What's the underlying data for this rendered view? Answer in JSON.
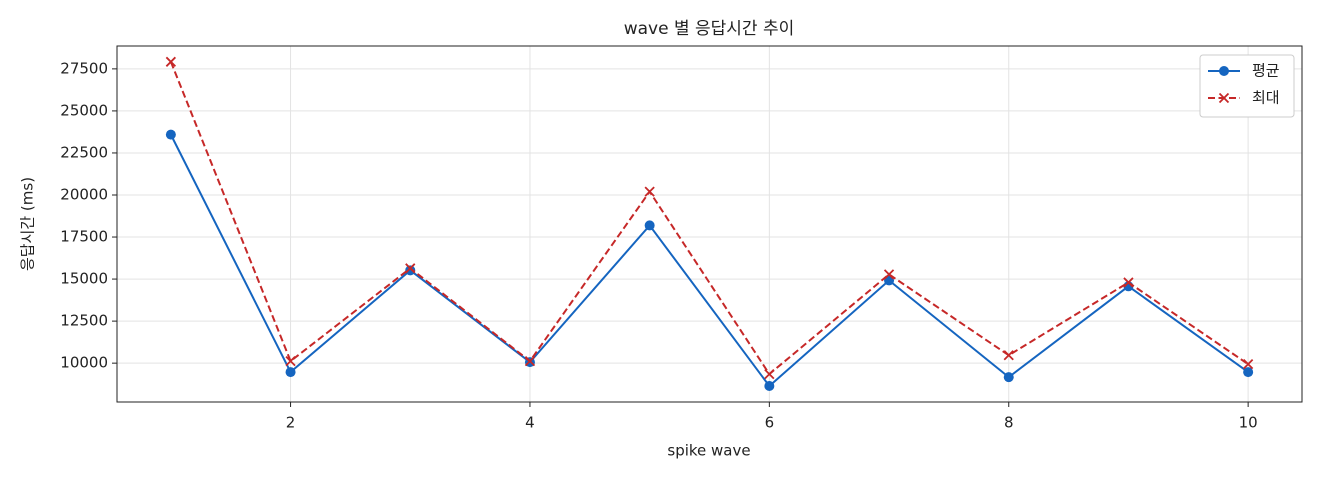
{
  "chart_data": {
    "type": "line",
    "title": "wave 별 응답시간 추이",
    "x_label": "spike wave",
    "y_label": "응답시간 (ms)",
    "x": [
      1,
      2,
      3,
      4,
      5,
      6,
      7,
      8,
      9,
      10
    ],
    "series": [
      {
        "name": "평균",
        "color": "#1565c0",
        "marker": "o",
        "linestyle": "solid",
        "values": [
          23590,
          9470,
          15520,
          10060,
          18190,
          8640,
          14920,
          9170,
          14570,
          9470
        ]
      },
      {
        "name": "최대",
        "color": "#c62828",
        "marker": "x",
        "linestyle": "dashed",
        "values": [
          27920,
          10120,
          15640,
          10120,
          20200,
          9350,
          15280,
          10470,
          14800,
          9940
        ]
      }
    ],
    "xlim": [
      0.55,
      10.45
    ],
    "ylim": [
      7690,
      28860
    ],
    "xticks": [
      2,
      4,
      6,
      8,
      10
    ],
    "yticks": [
      10000,
      12500,
      15000,
      17500,
      20000,
      22500,
      25000,
      27500
    ],
    "grid": true,
    "legend": "upper right"
  }
}
